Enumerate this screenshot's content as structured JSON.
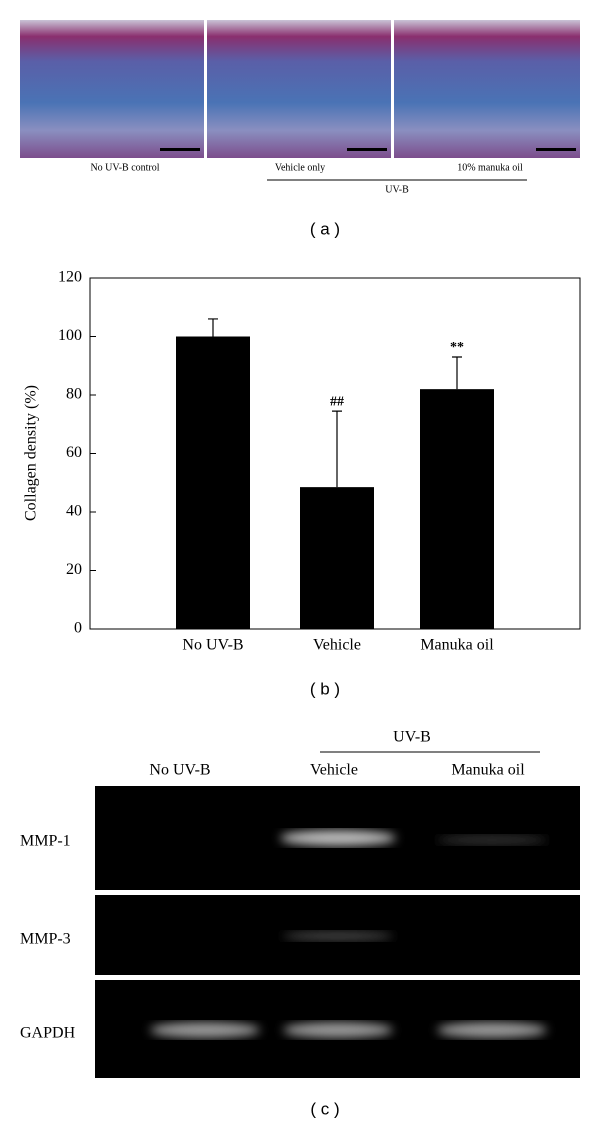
{
  "panel_a": {
    "images": [
      "No UV-B control",
      "Vehicle only",
      "10% manuka oil"
    ],
    "group": "UV-B",
    "label": "( a )"
  },
  "chart_data": {
    "type": "bar",
    "categories": [
      "No UV-B",
      "Vehicle",
      "Manuka oil"
    ],
    "values": [
      100,
      48.5,
      82
    ],
    "errors": [
      6,
      26,
      11
    ],
    "annotations": [
      null,
      "##",
      "**"
    ],
    "color": "#000000",
    "y_label": "Collagen density (%)",
    "ylim": [
      0,
      120
    ],
    "yticks": [
      0,
      20,
      40,
      60,
      80,
      100,
      120
    ],
    "label": "( b )"
  },
  "panel_c": {
    "group": "UV-B",
    "columns": [
      "No UV-B",
      "Vehicle",
      "Manuka oil"
    ],
    "rows": [
      "MMP-1",
      "MMP-3",
      "GAPDH"
    ],
    "label": "( c )"
  }
}
